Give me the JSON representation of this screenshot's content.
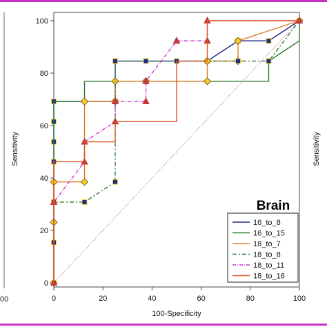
{
  "chart_data": {
    "type": "line",
    "xlabel": "100-Specificity",
    "ylabel": "Sensitivity",
    "right_ylabel": "Sensitivity",
    "xlim": [
      0,
      100
    ],
    "ylim": [
      0,
      100
    ],
    "xticks": [
      0,
      20,
      40,
      60,
      80,
      100
    ],
    "yticks": [
      0,
      20,
      40,
      60,
      80,
      100
    ],
    "left_panel_tick_fragment": "00",
    "grid": false,
    "legend": {
      "title": "Brain",
      "placement": "bottom-right"
    },
    "diagonal_reference": {
      "color": "#c97a7a",
      "style": "dotted"
    },
    "frame_color": "#c830c8",
    "series": [
      {
        "name": "16_to_8",
        "color": "#1f2a8c",
        "dash": "",
        "marker": "square",
        "marker_fill": "#1f2a8c",
        "marker_stroke": "#f2d22a",
        "x": [
          0,
          0,
          0,
          0,
          0,
          0,
          0,
          25,
          25,
          62.5,
          75,
          87.5,
          100
        ],
        "y": [
          0,
          15.4,
          30.8,
          46.2,
          53.8,
          61.5,
          69.2,
          69.2,
          84.6,
          84.6,
          92.3,
          92.3,
          100
        ]
      },
      {
        "name": "16_to_15",
        "color": "#2f7a2f",
        "dash": "",
        "marker": "none",
        "marker_fill": "#2f7a2f",
        "marker_stroke": "#2f7a2f",
        "x": [
          0,
          0,
          0,
          12.5,
          12.5,
          75,
          75,
          87.5,
          87.5,
          100,
          100
        ],
        "y": [
          0,
          53.8,
          69.2,
          69.2,
          76.9,
          76.9,
          76.9,
          76.9,
          84.6,
          92.3,
          100
        ]
      },
      {
        "name": "18_to_7",
        "color": "#e07a1f",
        "dash": "",
        "marker": "diamond",
        "marker_fill": "#f2d22a",
        "marker_stroke": "#8a5a1a",
        "x": [
          0,
          0,
          0,
          12.5,
          12.5,
          25,
          25,
          37.5,
          37.5,
          62.5,
          62.5,
          75,
          75,
          100
        ],
        "y": [
          0,
          23.1,
          38.5,
          38.5,
          69.2,
          69.2,
          76.9,
          76.9,
          76.9,
          76.9,
          84.6,
          84.6,
          92.3,
          100
        ]
      },
      {
        "name": "18_to_8",
        "color": "#2f7a2f",
        "dash": "6,3,2,3",
        "marker": "square",
        "marker_fill": "#1f2a8c",
        "marker_stroke": "#f2d22a",
        "x": [
          0,
          0,
          12.5,
          25,
          25,
          37.5,
          50,
          75,
          75,
          87.5,
          100
        ],
        "y": [
          0,
          30.8,
          30.8,
          38.5,
          84.6,
          84.6,
          84.6,
          84.6,
          84.6,
          84.6,
          100
        ]
      },
      {
        "name": "18_to_11",
        "color": "#cc33cc",
        "dash": "5,2,1,2",
        "marker": "triangle",
        "marker_fill": "#c23b3b",
        "marker_stroke": "#c23b3b",
        "x": [
          0,
          0,
          12.5,
          12.5,
          25,
          25,
          37.5,
          37.5,
          50,
          50,
          62.5,
          62.5,
          100
        ],
        "y": [
          0,
          30.8,
          46.2,
          53.8,
          61.5,
          69.2,
          69.2,
          76.9,
          92.3,
          92.3,
          92.3,
          100,
          100
        ]
      },
      {
        "name": "18_to_16",
        "color": "#e0551f",
        "dash": "",
        "marker": "none",
        "marker_fill": "#e0551f",
        "marker_stroke": "#e0551f",
        "x": [
          0,
          0,
          0,
          12.5,
          12.5,
          25,
          25,
          50,
          50,
          62.5,
          62.5,
          100
        ],
        "y": [
          0,
          38.5,
          46.2,
          46.2,
          53.8,
          53.8,
          61.5,
          61.5,
          84.6,
          84.6,
          100,
          100
        ]
      }
    ]
  }
}
